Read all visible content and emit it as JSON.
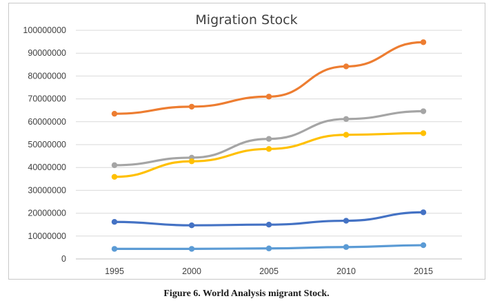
{
  "chart_data": {
    "type": "line",
    "title": "Migration Stock",
    "x": [
      "1995",
      "2000",
      "2005",
      "2010",
      "2015"
    ],
    "y_ticks": [
      "0",
      "10000000",
      "20000000",
      "30000000",
      "40000000",
      "50000000",
      "60000000",
      "70000000",
      "80000000",
      "90000000",
      "100000000"
    ],
    "ylim": [
      0,
      100000000
    ],
    "grid": true,
    "legend": "none",
    "series": [
      {
        "color": "#ED7D31",
        "values": [
          63500000,
          66600000,
          71000000,
          84200000,
          94800000
        ]
      },
      {
        "color": "#A5A5A5",
        "values": [
          41000000,
          44300000,
          52500000,
          61200000,
          64600000
        ]
      },
      {
        "color": "#FFC000",
        "values": [
          35900000,
          42700000,
          48100000,
          54300000,
          55000000
        ]
      },
      {
        "color": "#4472C4",
        "values": [
          16200000,
          14700000,
          15000000,
          16700000,
          20400000
        ]
      },
      {
        "color": "#5B9BD5",
        "values": [
          4400000,
          4400000,
          4600000,
          5200000,
          6000000
        ]
      }
    ]
  },
  "caption": "Figure 6. World Analysis migrant Stock."
}
